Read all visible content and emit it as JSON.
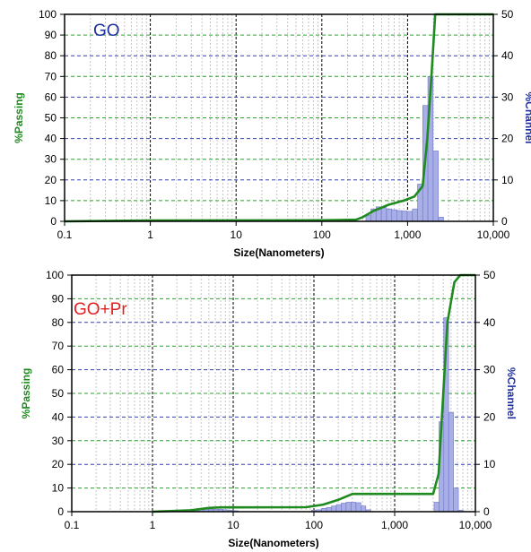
{
  "chart_data": [
    {
      "type": "bar+line",
      "annotation": "GO",
      "annotation_color": "#2030a0",
      "xlabel": "Size(Nanometers)",
      "ylabel_left": "%Passing",
      "ylabel_right": "%Channel",
      "x_scale": "log",
      "xlim": [
        0.1,
        10000
      ],
      "ylim_left": [
        0,
        100
      ],
      "ylim_right": [
        0,
        50
      ],
      "x_ticks": [
        0.1,
        1,
        10,
        100,
        1000,
        10000
      ],
      "x_tick_labels": [
        "0.1",
        "1",
        "10",
        "100",
        "1,000",
        "10,000"
      ],
      "y_left_ticks": [
        0,
        10,
        20,
        30,
        40,
        50,
        60,
        70,
        80,
        90,
        100
      ],
      "y_left_tick_labels": [
        "0",
        "10",
        "20",
        "30",
        "40",
        "50",
        "60",
        "70",
        "80",
        "90",
        "100"
      ],
      "y_right_ticks": [
        0,
        10,
        20,
        30,
        40,
        50
      ],
      "y_right_tick_labels": [
        "0",
        "10",
        "20",
        "30",
        "40",
        "50"
      ],
      "line_color": "#1f8a1f",
      "bar_color": "#a8aee6",
      "series": [
        {
          "kind": "line",
          "axis": "left",
          "x": [
            0.1,
            1,
            100,
            250,
            300,
            400,
            600,
            900,
            1200,
            1500,
            1700,
            1900,
            2100,
            2300,
            10000
          ],
          "y": [
            0,
            0.4,
            0.5,
            0.8,
            2,
            5,
            8,
            10,
            12,
            17,
            40,
            70,
            100,
            100,
            100
          ]
        },
        {
          "kind": "bar",
          "axis": "right",
          "x": [
            350,
            400,
            460,
            530,
            610,
            700,
            800,
            920,
            1060,
            1220,
            1400,
            1610,
            1850,
            2130,
            2450
          ],
          "y": [
            1.5,
            3,
            3.5,
            3.3,
            3,
            2.8,
            2.6,
            2.5,
            2.4,
            3,
            9,
            28,
            35,
            17,
            1
          ]
        }
      ]
    },
    {
      "type": "bar+line",
      "annotation": "GO+Pr",
      "annotation_color": "#e02020",
      "xlabel": "Size(Nanometers)",
      "ylabel_left": "%Passing",
      "ylabel_right": "%Channel",
      "x_scale": "log",
      "xlim": [
        0.1,
        10000
      ],
      "ylim_left": [
        0,
        100
      ],
      "ylim_right": [
        0,
        50
      ],
      "x_ticks": [
        0.1,
        1,
        10,
        100,
        1000,
        10000
      ],
      "x_tick_labels": [
        "0.1",
        "1",
        "10",
        "100",
        "1,000",
        "10,000"
      ],
      "y_left_ticks": [
        0,
        10,
        20,
        30,
        40,
        50,
        60,
        70,
        80,
        90,
        100
      ],
      "y_left_tick_labels": [
        "0",
        "10",
        "20",
        "30",
        "40",
        "50",
        "60",
        "70",
        "80",
        "90",
        "100"
      ],
      "y_right_ticks": [
        0,
        10,
        20,
        30,
        40,
        50
      ],
      "y_right_tick_labels": [
        "0",
        "10",
        "20",
        "30",
        "40",
        "50"
      ],
      "line_color": "#1f8a1f",
      "bar_color": "#a8aee6",
      "series": [
        {
          "kind": "line",
          "axis": "left",
          "x": [
            1,
            3,
            5,
            7,
            10,
            80,
            130,
            200,
            300,
            500,
            1000,
            3000,
            3500,
            4000,
            4500,
            5500,
            6500,
            10000
          ],
          "y": [
            0,
            0.6,
            1.6,
            1.8,
            1.8,
            1.9,
            3,
            5,
            7.5,
            7.5,
            7.5,
            7.5,
            16,
            50,
            80,
            97,
            100,
            100
          ]
        },
        {
          "kind": "bar",
          "axis": "right",
          "x": [
            3,
            3.5,
            4,
            4.6,
            5.3,
            6.1,
            7,
            8,
            9.3,
            10.7,
            100,
            115,
            133,
            153,
            176,
            203,
            233,
            268,
            309,
            356,
            410,
            472,
            3300,
            3800,
            4350,
            5000,
            5750,
            6600
          ],
          "y": [
            0.3,
            0.4,
            0.5,
            0.5,
            0.5,
            0.5,
            0.5,
            0.4,
            0.3,
            0.2,
            0.3,
            0.4,
            0.7,
            0.9,
            1.2,
            1.5,
            1.8,
            2,
            2,
            1.9,
            1.2,
            0.4,
            2,
            19,
            41,
            21,
            5,
            0.3
          ]
        }
      ]
    }
  ]
}
